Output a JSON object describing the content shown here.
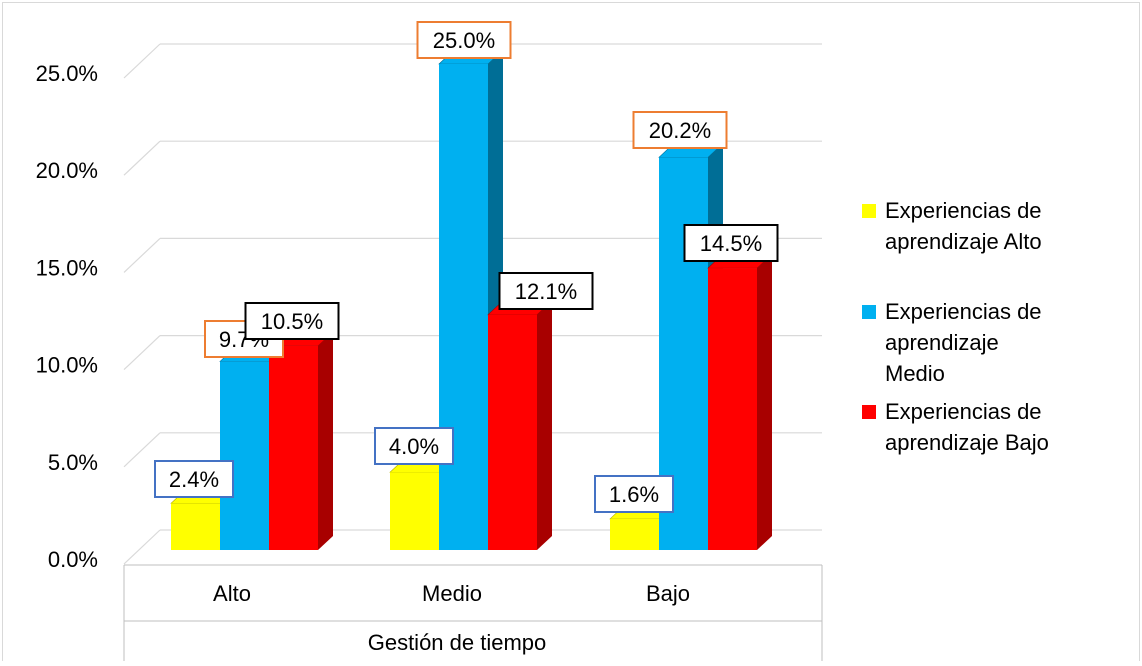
{
  "chart_data": {
    "type": "bar",
    "categories": [
      "Alto",
      "Medio",
      "Bajo"
    ],
    "xlabel": "Gestión de tiempo",
    "ylabel": "",
    "ylim": [
      0,
      25
    ],
    "yticks": [
      0,
      5,
      10,
      15,
      20,
      25
    ],
    "ytick_labels": [
      "0.0%",
      "5.0%",
      "10.0%",
      "15.0%",
      "20.0%",
      "25.0%"
    ],
    "grid": true,
    "legend_position": "right",
    "series": [
      {
        "name": "Experiencias de aprendizaje Alto",
        "legend_lines": [
          "Experiencias de",
          "aprendizaje Alto"
        ],
        "color": "#FFFF00",
        "shade": "#B3B300",
        "values": [
          2.4,
          4.0,
          1.6
        ],
        "labels": [
          "2.4%",
          "4.0%",
          "1.6%"
        ],
        "label_border": "#4472C4"
      },
      {
        "name": "Experiencias de aprendizaje Medio",
        "legend_lines": [
          "Experiencias de",
          "aprendizaje",
          "Medio"
        ],
        "color": "#00B0F0",
        "shade": "#006E96",
        "values": [
          9.7,
          25.0,
          20.2
        ],
        "labels": [
          "9.7%",
          "25.0%",
          "20.2%"
        ],
        "label_border": "#ED7D31"
      },
      {
        "name": "Experiencias de aprendizaje Bajo",
        "legend_lines": [
          "Experiencias de",
          "aprendizaje Bajo"
        ],
        "color": "#FF0000",
        "shade": "#A80000",
        "values": [
          10.5,
          12.1,
          14.5
        ],
        "labels": [
          "10.5%",
          "12.1%",
          "14.5%"
        ],
        "label_border": "#000000"
      }
    ]
  }
}
